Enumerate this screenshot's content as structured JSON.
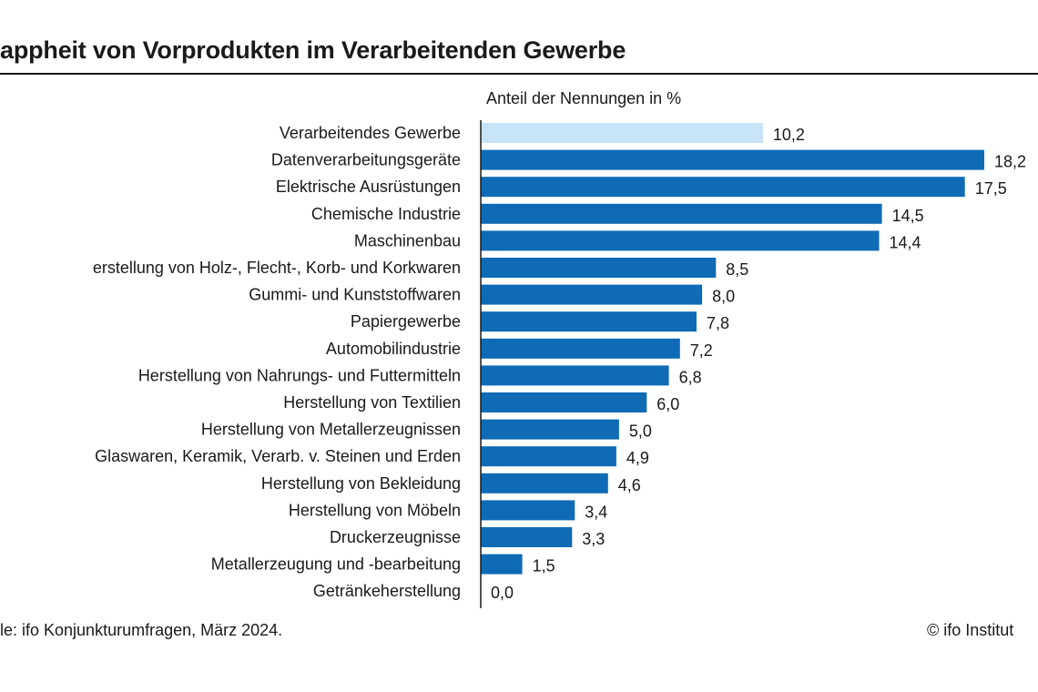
{
  "header": {
    "title": "appheit von Vorprodukten im Verarbeitenden Gewerbe",
    "subtitle": "Anteil der Nennungen in %"
  },
  "footer": {
    "source": "le: ifo Konjunkturumfragen, März 2024.",
    "copyright": "© ifo Institut"
  },
  "colors": {
    "highlight_bar": "#c6e3f7",
    "bar": "#0f6bb6",
    "text": "#1a1a1a",
    "axis": "#1a1a1a"
  },
  "chart_data": {
    "type": "bar",
    "orientation": "horizontal",
    "title": "appheit von Vorprodukten im Verarbeitenden Gewerbe",
    "xlabel": "Anteil der Nennungen in %",
    "ylabel": "",
    "xlim": [
      0,
      18.2
    ],
    "grid": false,
    "categories": [
      "Verarbeitendes Gewerbe",
      "Datenverarbeitungsgeräte",
      "Elektrische Ausrüstungen",
      "Chemische Industrie",
      "Maschinenbau",
      "erstellung von Holz-, Flecht-, Korb- und Korkwaren",
      "Gummi- und Kunststoffwaren",
      "Papiergewerbe",
      "Automobilindustrie",
      "Herstellung von Nahrungs- und Futtermitteln",
      "Herstellung von Textilien",
      "Herstellung von Metallerzeugnissen",
      "Glaswaren, Keramik, Verarb. v. Steinen und Erden",
      "Herstellung von Bekleidung",
      "Herstellung von Möbeln",
      "Druckerzeugnisse",
      "Metallerzeugung und -bearbeitung",
      "Getränkeherstellung"
    ],
    "values": [
      10.2,
      18.2,
      17.5,
      14.5,
      14.4,
      8.5,
      8.0,
      7.8,
      7.2,
      6.8,
      6.0,
      5.0,
      4.9,
      4.6,
      3.4,
      3.3,
      1.5,
      0.0
    ],
    "value_labels": [
      "10,2",
      "18,2",
      "17,5",
      "14,5",
      "14,4",
      "8,5",
      "8,0",
      "7,8",
      "7,2",
      "6,8",
      "6,0",
      "5,0",
      "4,9",
      "4,6",
      "3,4",
      "3,3",
      "1,5",
      "0,0"
    ],
    "highlight_index": 0
  }
}
